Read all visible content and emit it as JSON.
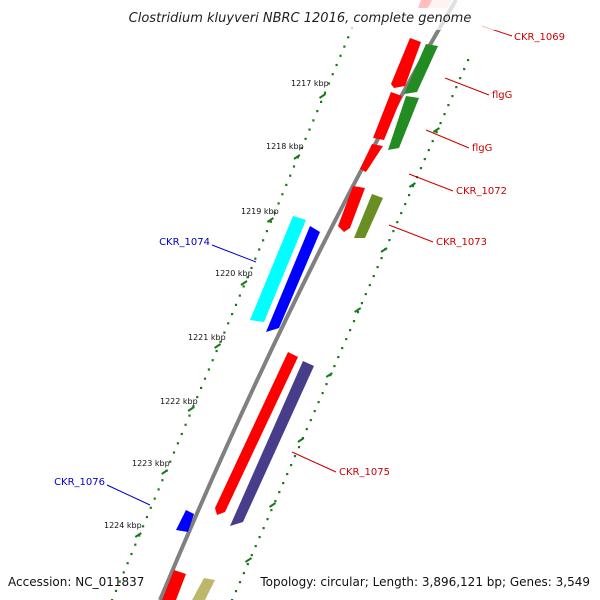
{
  "title": "Clostridium kluyveri NBRC 12016, complete genome",
  "footer": {
    "accession": "Accession: NC_011837",
    "topology": "Topology: circular; Length: 3,896,121 bp; Genes: 3,549"
  },
  "colors": {
    "backbone": "#808080",
    "tick": "#1a7a1a",
    "forward_label": "#cc0000",
    "reverse_label": "#0000cc"
  },
  "kbp_ticks": [
    "1217 kbp",
    "1218 kbp",
    "1219 kbp",
    "1220 kbp",
    "1221 kbp",
    "1222 kbp",
    "1223 kbp",
    "1224 kbp"
  ],
  "gene_labels": [
    {
      "id": "CKR_1069",
      "color": "#cc0000"
    },
    {
      "id": "flgG",
      "color": "#cc0000"
    },
    {
      "id": "flgG",
      "color": "#cc0000"
    },
    {
      "id": "CKR_1072",
      "color": "#cc0000"
    },
    {
      "id": "CKR_1073",
      "color": "#cc0000"
    },
    {
      "id": "CKR_1074",
      "color": "#0000cc"
    },
    {
      "id": "CKR_1075",
      "color": "#cc0000"
    },
    {
      "id": "CKR_1076",
      "color": "#0000cc"
    }
  ]
}
